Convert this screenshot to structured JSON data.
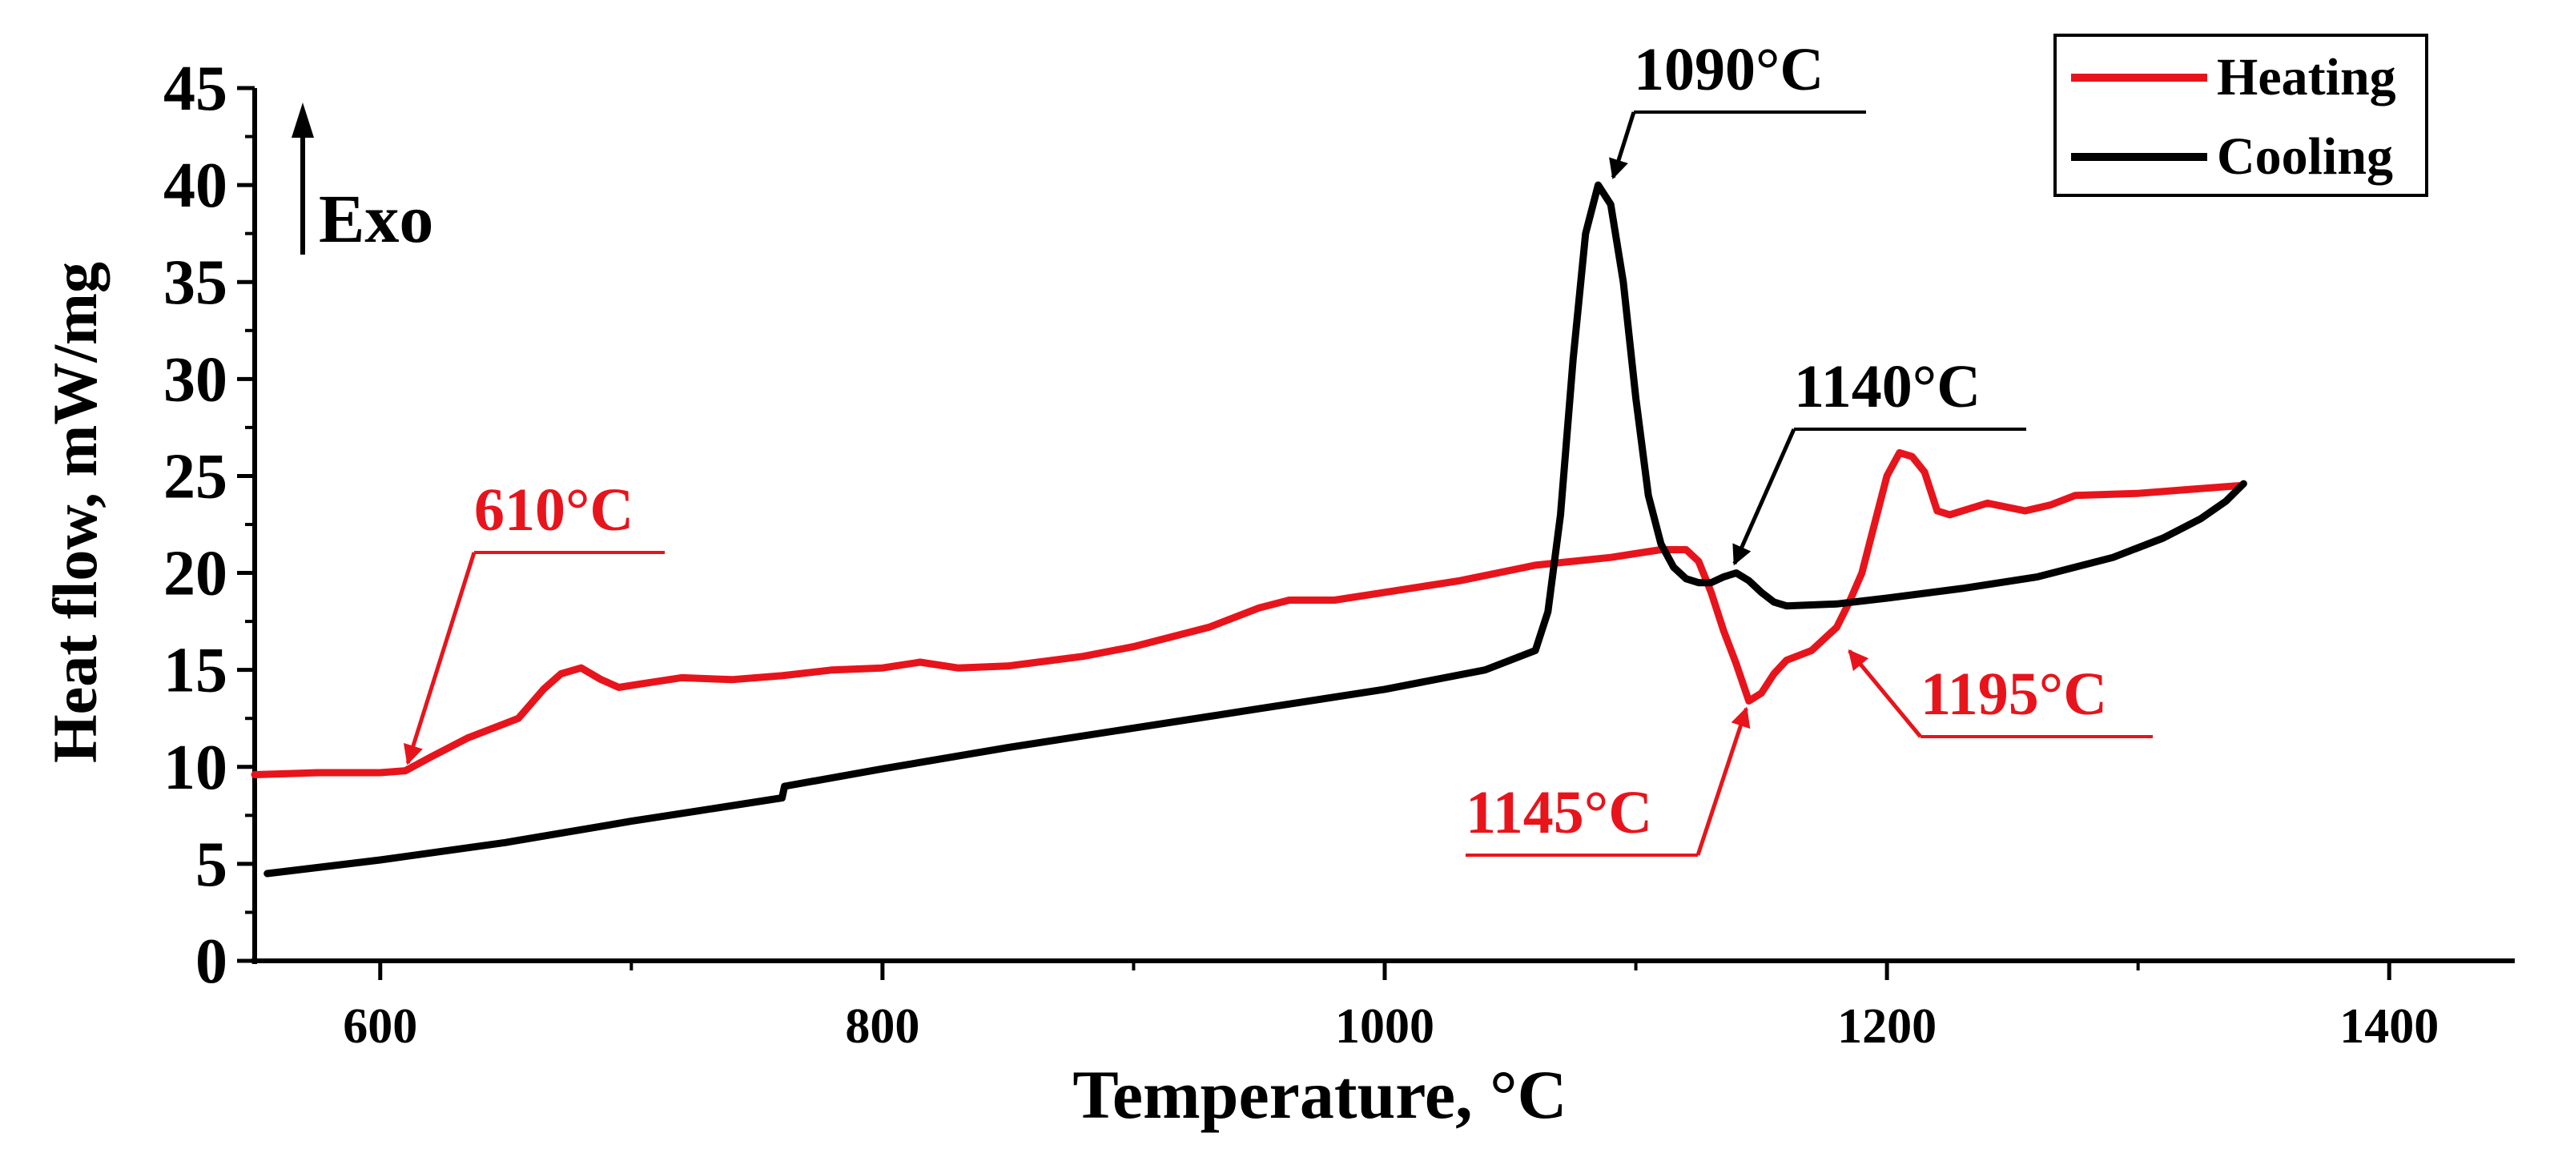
{
  "chart_data": {
    "type": "line",
    "title": "",
    "xlabel": "Temperature, °C",
    "ylabel": "Heat flow, mW/mg",
    "xlim": [
      550,
      1450
    ],
    "ylim": [
      0,
      45
    ],
    "xticks": [
      600,
      800,
      1000,
      1200,
      1400
    ],
    "yticks": [
      0,
      5,
      10,
      15,
      20,
      25,
      30,
      35,
      40,
      45
    ],
    "exo_label": "Exo",
    "legend_position": "top-right",
    "colors": {
      "heating": "#e8141c",
      "cooling": "#000000"
    },
    "series": [
      {
        "name": "Heating",
        "color": "#e8141c",
        "x": [
          550,
          575,
          600,
          610,
          620,
          635,
          655,
          665,
          672,
          680,
          688,
          695,
          705,
          720,
          740,
          760,
          780,
          800,
          815,
          830,
          850,
          880,
          900,
          930,
          950,
          962,
          980,
          1000,
          1030,
          1060,
          1090,
          1110,
          1120,
          1125,
          1130,
          1135,
          1140,
          1145,
          1150,
          1155,
          1160,
          1170,
          1180,
          1185,
          1190,
          1195,
          1200,
          1205,
          1210,
          1215,
          1220,
          1225,
          1240,
          1255,
          1265,
          1275,
          1300,
          1320,
          1340
        ],
        "y": [
          9.6,
          9.7,
          9.7,
          9.8,
          10.5,
          11.5,
          12.5,
          14.0,
          14.8,
          15.1,
          14.5,
          14.1,
          14.3,
          14.6,
          14.5,
          14.7,
          15.0,
          15.1,
          15.4,
          15.1,
          15.2,
          15.7,
          16.2,
          17.2,
          18.2,
          18.6,
          18.6,
          19.0,
          19.6,
          20.4,
          20.8,
          21.2,
          21.2,
          20.6,
          19.0,
          17.0,
          15.3,
          13.4,
          13.8,
          14.8,
          15.5,
          16.0,
          17.2,
          18.5,
          20.0,
          22.5,
          25.0,
          26.2,
          26.0,
          25.2,
          23.2,
          23.0,
          23.6,
          23.2,
          23.5,
          24.0,
          24.1,
          24.3,
          24.5
        ]
      },
      {
        "name": "Cooling",
        "color": "#000000",
        "x": [
          555,
          600,
          650,
          700,
          760,
          761,
          800,
          850,
          900,
          950,
          1000,
          1040,
          1060,
          1065,
          1070,
          1075,
          1080,
          1085,
          1090,
          1095,
          1100,
          1105,
          1110,
          1115,
          1120,
          1125,
          1130,
          1135,
          1140,
          1145,
          1150,
          1155,
          1160,
          1180,
          1200,
          1230,
          1260,
          1290,
          1310,
          1325,
          1335,
          1342
        ],
        "y": [
          4.5,
          5.2,
          6.1,
          7.2,
          8.4,
          9.0,
          9.9,
          11.0,
          12.0,
          13.0,
          14.0,
          15.0,
          16.0,
          18.0,
          23.0,
          31.0,
          37.5,
          40.0,
          39.0,
          35.0,
          29.0,
          24.0,
          21.5,
          20.3,
          19.7,
          19.5,
          19.5,
          19.8,
          20.0,
          19.6,
          19.0,
          18.5,
          18.3,
          18.4,
          18.7,
          19.2,
          19.8,
          20.8,
          21.8,
          22.8,
          23.7,
          24.6
        ]
      }
    ],
    "annotations": [
      {
        "label": "610°C",
        "color": "#e8141c",
        "target_x": 610,
        "target_y": 9.8
      },
      {
        "label": "1090°C",
        "color": "#000000",
        "target_x": 1090,
        "target_y": 40.0
      },
      {
        "label": "1140°C",
        "color": "#000000",
        "target_x": 1138,
        "target_y": 20.1
      },
      {
        "label": "1145°C",
        "color": "#e8141c",
        "target_x": 1145,
        "target_y": 13.4
      },
      {
        "label": "1195°C",
        "color": "#e8141c",
        "target_x": 1183,
        "target_y": 16.3
      }
    ]
  }
}
